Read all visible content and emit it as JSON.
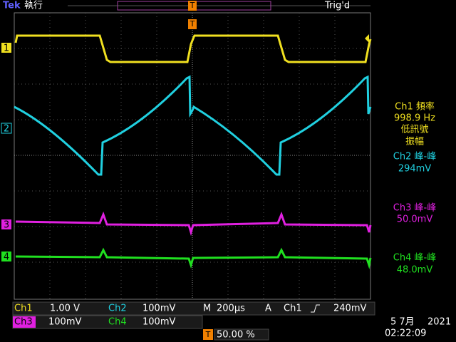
{
  "header": {
    "brand": "Tek",
    "state": "執行",
    "trigger_status": "Trig'd",
    "trigger_marker": "T"
  },
  "channel_markers": [
    "1",
    "2",
    "3",
    "4"
  ],
  "measurements": [
    {
      "label": "Ch1 頻率",
      "lines": [
        "998.9 Hz",
        "低訊號",
        "振幅"
      ]
    },
    {
      "label": "Ch2 峰-峰",
      "lines": [
        "294mV"
      ]
    },
    {
      "label": "Ch3 峰-峰",
      "lines": [
        "50.0mV"
      ]
    },
    {
      "label": "Ch4 峰-峰",
      "lines": [
        "48.0mV"
      ]
    }
  ],
  "settings": {
    "ch1": {
      "name": "Ch1",
      "scale": "1.00 V"
    },
    "ch2": {
      "name": "Ch2",
      "scale": "100mV"
    },
    "ch3": {
      "name": "Ch3",
      "scale": "100mV"
    },
    "ch4": {
      "name": "Ch4",
      "scale": "100mV"
    },
    "timebase": {
      "label": "M",
      "scale": "200µs"
    },
    "trigger": {
      "label": "A",
      "source": "Ch1",
      "level": "240mV"
    },
    "position": {
      "label": "T",
      "value": "50.00 %"
    },
    "date": "5 7月",
    "year": "2021",
    "time": "02:22:09"
  }
}
